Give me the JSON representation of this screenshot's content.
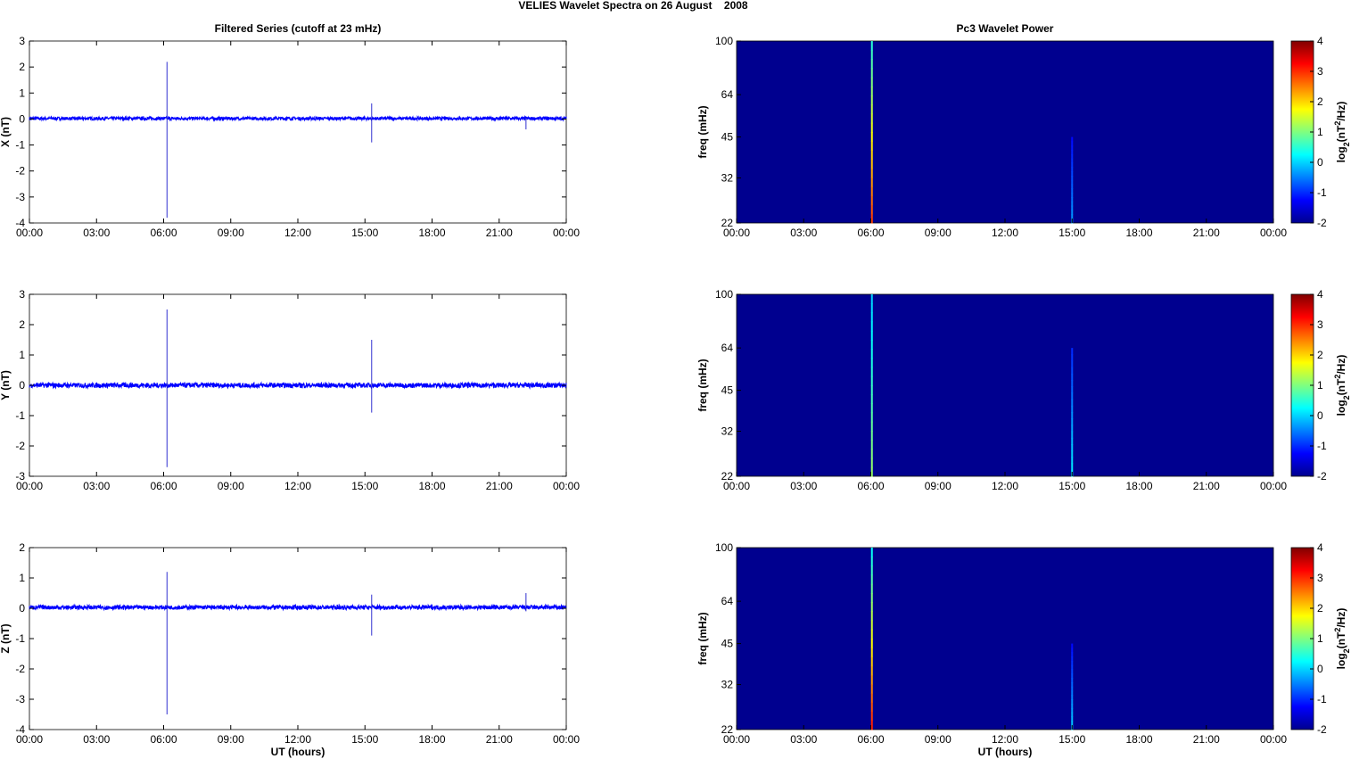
{
  "chart_data": {
    "title": "VELIES Wavelet Spectra on 26 August    2008",
    "left_title": "Filtered Series (cutoff at 23 mHz)",
    "right_title": "Pc3 Wavelet Power",
    "xlabel": "UT (hours)",
    "xticks": [
      "00:00",
      "03:00",
      "06:00",
      "09:00",
      "12:00",
      "15:00",
      "18:00",
      "21:00",
      "00:00"
    ],
    "xlim_hours": [
      0,
      24
    ],
    "colors": {
      "series": "#0000ff",
      "background": "#00008f"
    },
    "time_series": [
      {
        "type": "line",
        "name": "X",
        "ylabel": "X (nT)",
        "ylim": [
          -4,
          3
        ],
        "yticks": [
          3,
          2,
          1,
          0,
          -1,
          -2,
          -3,
          -4
        ],
        "baseline": 0.02,
        "noise": 0.06,
        "spikes": [
          {
            "t": 6.15,
            "max": 2.2,
            "min": -3.8
          },
          {
            "t": 15.3,
            "max": 0.6,
            "min": -0.9
          },
          {
            "t": 22.2,
            "max": 0.05,
            "min": -0.4
          }
        ]
      },
      {
        "type": "line",
        "name": "Y",
        "ylabel": "Y (nT)",
        "ylim": [
          -3,
          3
        ],
        "yticks": [
          3,
          2,
          1,
          0,
          -1,
          -2,
          -3
        ],
        "baseline": 0.0,
        "noise": 0.08,
        "spikes": [
          {
            "t": 6.15,
            "max": 2.5,
            "min": -2.7
          },
          {
            "t": 15.3,
            "max": 1.5,
            "min": -0.9
          }
        ]
      },
      {
        "type": "line",
        "name": "Z",
        "ylabel": "Z (nT)",
        "ylim": [
          -4,
          2
        ],
        "yticks": [
          2,
          1,
          0,
          -1,
          -2,
          -3,
          -4
        ],
        "baseline": 0.03,
        "noise": 0.07,
        "spikes": [
          {
            "t": 6.15,
            "max": 1.2,
            "min": -3.5
          },
          {
            "t": 15.3,
            "max": 0.45,
            "min": -0.9
          },
          {
            "t": 22.2,
            "max": 0.5,
            "min": -0.1
          }
        ]
      }
    ],
    "spectra": [
      {
        "type": "heatmap",
        "ylabel": "freq (mHz)",
        "yticks": [
          100,
          64,
          45,
          32,
          22
        ],
        "ylim": [
          22,
          100
        ],
        "clim": [
          -2,
          4
        ],
        "cticks": [
          4,
          3,
          2,
          1,
          0,
          -1,
          -2
        ],
        "clabel": "log2(nT²/Hz)",
        "streaks": [
          {
            "t": 6.05,
            "fmax": 100,
            "power_bottom": 3.0,
            "power_top": 0.5
          },
          {
            "t": 15.0,
            "fmax": 45,
            "power_bottom": -0.3,
            "power_top": -1.2
          }
        ]
      },
      {
        "type": "heatmap",
        "ylabel": "freq (mHz)",
        "yticks": [
          100,
          64,
          45,
          32,
          22
        ],
        "ylim": [
          22,
          100
        ],
        "clim": [
          -2,
          4
        ],
        "cticks": [
          4,
          3,
          2,
          1,
          0,
          -1,
          -2
        ],
        "clabel": "log2(nT²/Hz)",
        "streaks": [
          {
            "t": 6.05,
            "fmax": 100,
            "power_bottom": 1.2,
            "power_top": 0.0
          },
          {
            "t": 15.0,
            "fmax": 64,
            "power_bottom": 0.2,
            "power_top": -1.0
          }
        ]
      },
      {
        "type": "heatmap",
        "ylabel": "freq (mHz)",
        "yticks": [
          100,
          64,
          45,
          32,
          22
        ],
        "ylim": [
          22,
          100
        ],
        "clim": [
          -2,
          4
        ],
        "cticks": [
          4,
          3,
          2,
          1,
          0,
          -1,
          -2
        ],
        "clabel": "log2(nT²/Hz)",
        "streaks": [
          {
            "t": 6.05,
            "fmax": 100,
            "power_bottom": 3.2,
            "power_top": 0.3
          },
          {
            "t": 15.0,
            "fmax": 45,
            "power_bottom": 0.0,
            "power_top": -1.2
          }
        ]
      }
    ]
  }
}
